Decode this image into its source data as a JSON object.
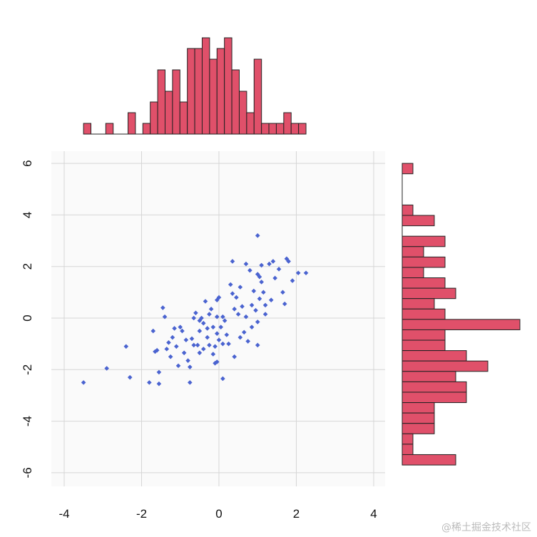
{
  "watermark": "@稀土掘金技术社区",
  "chart_data": [
    {
      "type": "scatter",
      "role": "main-scatter",
      "xlim": [
        -4.3,
        4.3
      ],
      "ylim": [
        -6.6,
        6.4
      ],
      "x_ticks": [
        -4,
        -2,
        0,
        2,
        4
      ],
      "y_ticks": [
        -6,
        -4,
        -2,
        0,
        2,
        4,
        6
      ],
      "x_tick_labels": [
        "-4",
        "-2",
        "0",
        "2",
        "4"
      ],
      "y_tick_labels": [
        "-6",
        "-4",
        "-2",
        "0",
        "2",
        "4",
        "6"
      ],
      "grid": true,
      "point_color": "#4a63d0",
      "points": [
        [
          -3.5,
          -2.5
        ],
        [
          -2.9,
          -1.95
        ],
        [
          -2.4,
          -1.1
        ],
        [
          -2.3,
          -2.3
        ],
        [
          -1.8,
          -2.5
        ],
        [
          -1.7,
          -0.5
        ],
        [
          -1.65,
          -1.3
        ],
        [
          -1.6,
          -1.25
        ],
        [
          -1.55,
          -2.1
        ],
        [
          -1.55,
          -2.55
        ],
        [
          -1.45,
          0.4
        ],
        [
          -1.4,
          0.05
        ],
        [
          -1.35,
          -1.2
        ],
        [
          -1.3,
          -0.95
        ],
        [
          -1.25,
          -1.5
        ],
        [
          -1.2,
          -0.75
        ],
        [
          -1.15,
          -0.4
        ],
        [
          -1.1,
          -1.1
        ],
        [
          -1.05,
          -1.85
        ],
        [
          -1.0,
          -0.35
        ],
        [
          -0.95,
          -0.5
        ],
        [
          -0.9,
          -1.35
        ],
        [
          -0.85,
          -0.85
        ],
        [
          -0.8,
          -1.65
        ],
        [
          -0.75,
          -1.9
        ],
        [
          -0.75,
          -2.5
        ],
        [
          -0.7,
          -0.8
        ],
        [
          -0.65,
          -1.05
        ],
        [
          -0.65,
          0.0
        ],
        [
          -0.6,
          0.2
        ],
        [
          -0.55,
          -1.05
        ],
        [
          -0.5,
          -0.5
        ],
        [
          -0.5,
          -1.35
        ],
        [
          -0.45,
          0.0
        ],
        [
          -0.4,
          -0.2
        ],
        [
          -0.4,
          -1.2
        ],
        [
          -0.35,
          0.65
        ],
        [
          -0.3,
          -0.4
        ],
        [
          -0.3,
          -0.75
        ],
        [
          -0.25,
          0.15
        ],
        [
          -0.25,
          -1.05
        ],
        [
          -0.2,
          0.35
        ],
        [
          -0.15,
          -0.35
        ],
        [
          -0.15,
          -1.4
        ],
        [
          -0.1,
          -1.75
        ],
        [
          -0.1,
          -1.1
        ],
        [
          -0.05,
          0.05
        ],
        [
          -0.05,
          -0.6
        ],
        [
          -0.05,
          -1.7
        ],
        [
          0.0,
          -0.85
        ],
        [
          0.05,
          -0.35
        ],
        [
          0.1,
          0.05
        ],
        [
          0.1,
          -1.0
        ],
        [
          0.1,
          -2.35
        ],
        [
          0.15,
          -0.1
        ],
        [
          0.2,
          -0.65
        ],
        [
          0.25,
          -1.0
        ],
        [
          0.3,
          1.3
        ],
        [
          0.35,
          0.95
        ],
        [
          0.4,
          0.35
        ],
        [
          0.4,
          -1.5
        ],
        [
          0.45,
          0.8
        ],
        [
          0.5,
          0.15
        ],
        [
          0.55,
          -0.75
        ],
        [
          0.55,
          1.2
        ],
        [
          0.6,
          0.45
        ],
        [
          0.65,
          -0.55
        ],
        [
          0.7,
          0.05
        ],
        [
          0.75,
          -0.9
        ],
        [
          0.8,
          1.85
        ],
        [
          0.85,
          0.5
        ],
        [
          0.85,
          -0.35
        ],
        [
          0.9,
          1.05
        ],
        [
          0.95,
          0.3
        ],
        [
          1.0,
          -0.15
        ],
        [
          1.0,
          -1.05
        ],
        [
          1.0,
          1.7
        ],
        [
          1.05,
          0.75
        ],
        [
          1.1,
          1.4
        ],
        [
          1.1,
          2.05
        ],
        [
          1.15,
          1.0
        ],
        [
          1.2,
          0.5
        ],
        [
          1.2,
          0.15
        ],
        [
          1.3,
          2.1
        ],
        [
          1.35,
          0.7
        ],
        [
          1.4,
          2.2
        ],
        [
          1.45,
          1.55
        ],
        [
          1.55,
          1.9
        ],
        [
          1.65,
          1.0
        ],
        [
          1.7,
          0.55
        ],
        [
          1.75,
          2.3
        ],
        [
          1.8,
          2.2
        ],
        [
          1.9,
          1.45
        ],
        [
          2.05,
          1.75
        ],
        [
          2.25,
          1.75
        ],
        [
          1.0,
          3.2
        ],
        [
          0.7,
          2.1
        ],
        [
          0.35,
          2.2
        ],
        [
          1.05,
          1.6
        ],
        [
          0.0,
          0.8
        ],
        [
          -0.5,
          -0.1
        ],
        [
          -0.05,
          0.7
        ]
      ]
    },
    {
      "type": "bar",
      "role": "top-histogram",
      "orientation": "vertical",
      "x_range": [
        -3.5,
        2.25
      ],
      "color": "#e0506a",
      "counts": [
        1,
        0,
        0,
        1,
        0,
        0,
        2,
        0,
        1,
        3,
        6,
        4,
        6,
        3,
        8,
        8,
        9,
        7,
        8,
        9,
        6,
        4,
        2,
        7,
        1,
        1,
        1,
        2,
        1,
        1
      ]
    },
    {
      "type": "bar",
      "role": "right-histogram",
      "orientation": "horizontal",
      "y_range": [
        -5.7,
        6.0
      ],
      "color": "#e0506a",
      "counts_from_top": [
        1,
        0,
        0,
        0,
        1,
        3,
        0,
        4,
        2,
        4,
        2,
        4,
        5,
        3,
        4,
        11,
        4,
        4,
        6,
        8,
        5,
        6,
        6,
        3,
        3,
        3,
        1,
        1,
        5
      ]
    }
  ]
}
